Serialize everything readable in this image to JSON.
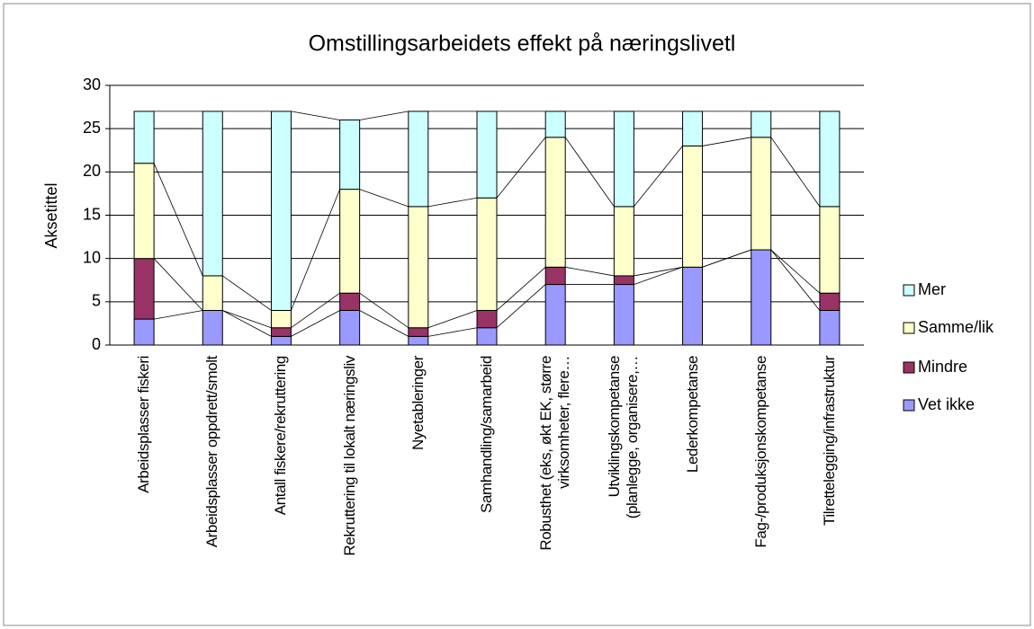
{
  "chart_data": {
    "type": "stacked_bar",
    "title": "Omstillingsarbeidets effekt på næringslivetl",
    "y_label": "Aksetittel",
    "categories": [
      "Arbeidsplasser fiskeri",
      "Arbeidsplasser oppdrett/smolt",
      "Antall fiskere/rekruttering",
      "Rekruttering til lokalt næringsliv",
      "Nyetableringer",
      "Samhandling/samarbeid",
      "Robusthet (eks, økt EK, større virksomheter, flere…",
      "Utviklingskompetanse (planlegge, organisere,…",
      "Lederkompetanse",
      "Fag-/produksjonskompetanse",
      "Tilrettelegging/infrastruktur"
    ],
    "series": [
      {
        "name": "Vet ikke",
        "color": "#9999ff",
        "values": [
          3,
          4,
          1,
          4,
          1,
          2,
          7,
          7,
          9,
          11,
          4
        ]
      },
      {
        "name": "Mindre",
        "color": "#993366",
        "values": [
          7,
          0,
          1,
          2,
          1,
          2,
          2,
          1,
          0,
          0,
          2
        ]
      },
      {
        "name": "Samme/lik",
        "color": "#ffffcc",
        "values": [
          11,
          4,
          2,
          12,
          14,
          13,
          15,
          8,
          14,
          13,
          10
        ]
      },
      {
        "name": "Mer",
        "color": "#ccffff",
        "values": [
          6,
          19,
          23,
          8,
          11,
          10,
          3,
          11,
          4,
          3,
          11
        ]
      }
    ],
    "ylim": [
      0,
      30
    ],
    "yticks": [
      0,
      5,
      10,
      15,
      20,
      25,
      30
    ],
    "grid": true,
    "legend": "right",
    "series_lines": true
  }
}
